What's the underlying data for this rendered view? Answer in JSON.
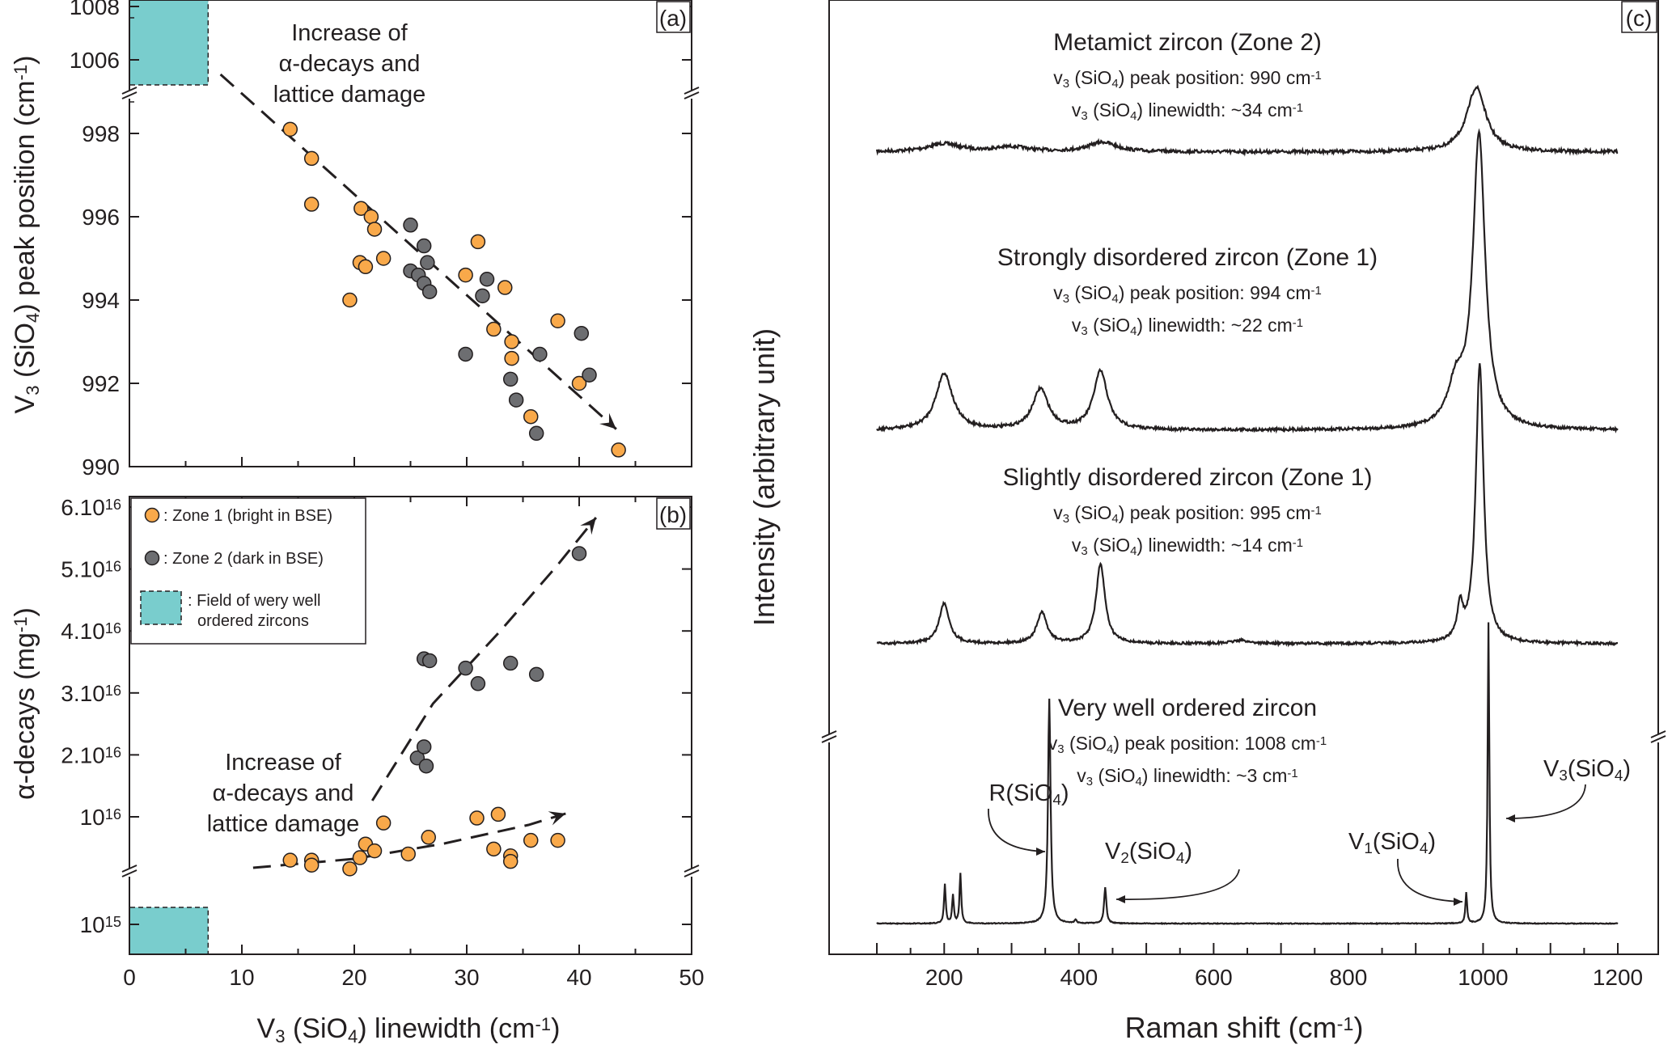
{
  "chart_data": [
    {
      "panel": "(a)",
      "type": "scatter",
      "xlabel": "V3 (SiO4) linewidth (cm-1)",
      "ylabel": "V3 (SiO4) peak position (cm-1)",
      "xlim": [
        0,
        50
      ],
      "ylim_main": [
        990,
        999
      ],
      "ylim_break": [
        1005,
        1008
      ],
      "yticks": [
        "990",
        "992",
        "994",
        "996",
        "998",
        "1006",
        "1008"
      ],
      "annotation": [
        "Increase of",
        "α-decays  and",
        "lattice damage"
      ],
      "series": [
        {
          "name": "Zone 1 (bright in BSE)",
          "color": "#f9a94a",
          "points": [
            [
              14.3,
              998.1
            ],
            [
              16.2,
              997.4
            ],
            [
              16.2,
              996.3
            ],
            [
              20.6,
              996.2
            ],
            [
              21.5,
              996.0
            ],
            [
              21.8,
              995.7
            ],
            [
              20.5,
              994.9
            ],
            [
              21.0,
              994.8
            ],
            [
              22.6,
              995.0
            ],
            [
              19.6,
              994.0
            ],
            [
              29.9,
              994.6
            ],
            [
              31.0,
              995.4
            ],
            [
              33.4,
              994.3
            ],
            [
              32.4,
              993.3
            ],
            [
              34.0,
              993.0
            ],
            [
              34.0,
              992.6
            ],
            [
              38.1,
              993.5
            ],
            [
              40.0,
              992.0
            ],
            [
              35.7,
              991.2
            ],
            [
              43.5,
              990.4
            ]
          ]
        },
        {
          "name": "Zone 2 (dark in BSE)",
          "color": "#6d6e71",
          "points": [
            [
              25.0,
              995.8
            ],
            [
              26.2,
              995.3
            ],
            [
              26.5,
              994.9
            ],
            [
              25.0,
              994.7
            ],
            [
              25.7,
              994.6
            ],
            [
              26.2,
              994.4
            ],
            [
              26.7,
              994.2
            ],
            [
              31.8,
              994.5
            ],
            [
              31.4,
              994.1
            ],
            [
              29.9,
              992.7
            ],
            [
              33.9,
              992.1
            ],
            [
              34.4,
              991.6
            ],
            [
              36.2,
              990.8
            ],
            [
              36.5,
              992.7
            ],
            [
              40.2,
              993.2
            ],
            [
              40.9,
              992.2
            ]
          ]
        }
      ],
      "arrow": [
        [
          8.1,
          1005.7
        ],
        [
          43.3,
          990.9
        ]
      ]
    },
    {
      "panel": "(b)",
      "type": "scatter",
      "xlabel": "V3 (SiO4) linewidth (cm-1)",
      "ylabel": "α-decays (mg-1)",
      "xlim": [
        0,
        50
      ],
      "yticks": [
        "10^15",
        "10^16",
        "2.10^16",
        "3.10^16",
        "4.10^16",
        "5.10^16",
        "6.10^16"
      ],
      "xticks": [
        "0",
        "10",
        "20",
        "30",
        "40",
        "50"
      ],
      "annotation": [
        "Increase of",
        "α-decays  and",
        "lattice damage"
      ],
      "series": [
        {
          "name": "Zone 1 (bright in BSE)",
          "color": "#f9a94a",
          "points_e16": [
            [
              14.3,
              0.3
            ],
            [
              16.2,
              0.3
            ],
            [
              16.2,
              0.22
            ],
            [
              19.6,
              0.16
            ],
            [
              20.5,
              0.34
            ],
            [
              21.0,
              0.56
            ],
            [
              21.8,
              0.45
            ],
            [
              22.6,
              0.9
            ],
            [
              24.8,
              0.4
            ],
            [
              26.6,
              0.67
            ],
            [
              30.9,
              0.98
            ],
            [
              32.4,
              0.48
            ],
            [
              32.8,
              1.04
            ],
            [
              33.9,
              0.37
            ],
            [
              33.9,
              0.28
            ],
            [
              35.7,
              0.62
            ],
            [
              38.1,
              0.62
            ]
          ]
        },
        {
          "name": "Zone 2 (dark in BSE)",
          "color": "#6d6e71",
          "points_e16": [
            [
              25.6,
              1.95
            ],
            [
              26.2,
              2.13
            ],
            [
              26.4,
              1.82
            ],
            [
              26.2,
              3.55
            ],
            [
              26.7,
              3.52
            ],
            [
              29.9,
              3.4
            ],
            [
              31.0,
              3.15
            ],
            [
              33.9,
              3.48
            ],
            [
              36.2,
              3.3
            ],
            [
              40.0,
              5.25
            ]
          ]
        }
      ],
      "legend": [
        {
          "marker": "orange-circle",
          "label": ": Zone 1 (bright in BSE)"
        },
        {
          "marker": "grey-circle",
          "label": ": Zone 2 (dark in BSE)"
        },
        {
          "marker": "teal-box",
          "label_lines": [
            ": Field of wery well",
            "ordered zircons"
          ]
        }
      ],
      "legend_position": "top-left",
      "field_color": "#79cdcd"
    },
    {
      "panel": "(c)",
      "type": "line",
      "xlabel": "Raman shift (cm-1)",
      "ylabel": "Intensity (arbitrary unit)",
      "xlim": [
        100,
        1200
      ],
      "xticks": [
        "200",
        "400",
        "600",
        "800",
        "1000",
        "1200"
      ],
      "spectra": [
        {
          "title": "Metamict zircon (Zone 2)",
          "peak_position": "v3 (SiO4) peak position: 990 cm-1",
          "linewidth": "v3 (SiO4) linewidth: ~34 cm-1",
          "v3_peak": 990,
          "fwhm": 34
        },
        {
          "title": "Strongly disordered zircon (Zone 1)",
          "peak_position": "v3 (SiO4) peak position: 994 cm-1",
          "linewidth": "v3 (SiO4) linewidth: ~22 cm-1",
          "v3_peak": 994,
          "fwhm": 22
        },
        {
          "title": "Slightly disordered zircon (Zone 1)",
          "peak_position": "v3 (SiO4) peak position: 995 cm-1",
          "linewidth": "v3 (SiO4) linewidth: ~14 cm-1",
          "v3_peak": 995,
          "fwhm": 14
        },
        {
          "title": "Very well ordered zircon",
          "peak_position": "v3 (SiO4) peak position: 1008 cm-1",
          "linewidth": "v3 (SiO4) linewidth: ~3 cm-1",
          "v3_peak": 1008,
          "fwhm": 3
        }
      ],
      "peak_labels": [
        {
          "label": "R(SiO4)",
          "x": 356
        },
        {
          "label": "V2(SiO4)",
          "x": 439
        },
        {
          "label": "V1(SiO4)",
          "x": 975
        },
        {
          "label": "V3(SiO4)",
          "x": 1008
        }
      ]
    }
  ],
  "text": {
    "a_ann": [
      "Increase of",
      "α-decays  and",
      "lattice damage"
    ],
    "b_ann": [
      "Increase of",
      "α-decays  and",
      "lattice damage"
    ]
  }
}
